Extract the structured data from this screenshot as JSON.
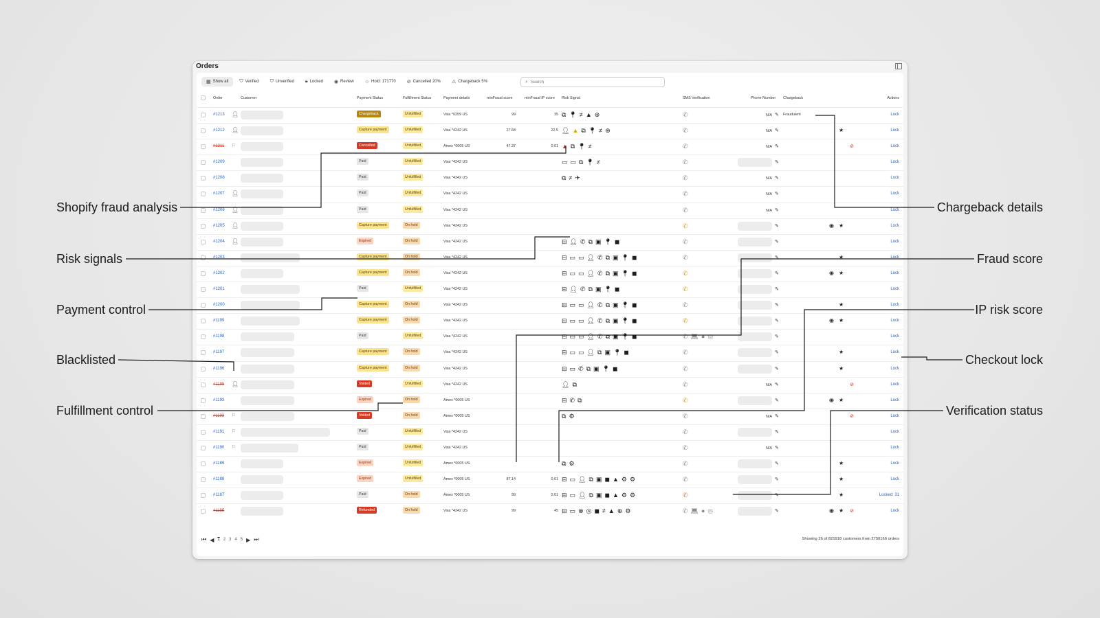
{
  "window": {
    "title": "Orders"
  },
  "tabs": [
    {
      "label": "Show all",
      "icon": "table-icon",
      "glyph": "▦",
      "active": true
    },
    {
      "label": "Verified",
      "icon": "shield-check-icon",
      "glyph": "⛉",
      "active": false
    },
    {
      "label": "Unverified",
      "icon": "shield-icon",
      "glyph": "⛉",
      "active": false
    },
    {
      "label": "Locked",
      "icon": "lock-icon",
      "glyph": "🔒︎",
      "active": false
    },
    {
      "label": "Review",
      "icon": "eye-icon",
      "glyph": "◉",
      "active": false
    },
    {
      "label": "Hold: 171770",
      "icon": "star-outline-icon",
      "glyph": "☆",
      "active": false
    },
    {
      "label": "Cancelled 20%",
      "icon": "cancel-icon",
      "glyph": "⊘",
      "active": false
    },
    {
      "label": "Chargeback 5%",
      "icon": "warning-icon",
      "glyph": "⚠",
      "active": false
    }
  ],
  "search": {
    "placeholder": "Search"
  },
  "columns": {
    "order": "Order",
    "customer": "Customer",
    "payment_status": "Payment Status",
    "fulfillment_status": "Fulfillment Status",
    "payment_details": "Payment details",
    "minfraud_score": "minFraud score",
    "minfraud_ip_score": "minFraud IP score",
    "risk_signal": "Risk Signal",
    "sms_verification": "SMS Verification",
    "phone_number": "Phone Number",
    "chargeback": "Chargeback",
    "actions": "Actions"
  },
  "statuses": {
    "Chargeback": {
      "bg": "#b8860b",
      "fg": "#ffffff"
    },
    "Capture payment": {
      "bg": "#fbe38e",
      "fg": "#5a4600"
    },
    "Cancelled": {
      "bg": "#d63a22",
      "fg": "#ffffff"
    },
    "Paid": {
      "bg": "#e6e6e6",
      "fg": "#444444"
    },
    "Expired": {
      "bg": "#fbd5c4",
      "fg": "#8a3b1a"
    },
    "Voided": {
      "bg": "#d63a22",
      "fg": "#ffffff"
    },
    "Refunded": {
      "bg": "#d63a22",
      "fg": "#ffffff"
    },
    "Unfulfilled": {
      "bg": "#fbe9a0",
      "fg": "#5a4600"
    },
    "On hold": {
      "bg": "#f7d9b0",
      "fg": "#6b3f10"
    }
  },
  "orders": [
    {
      "id": "#1213",
      "struck": false,
      "cust_icon": "user-icon",
      "cust_w": 62,
      "payment": "Chargeback",
      "fulfillment": "Unfulfilled",
      "details": "Visa *0259 US",
      "fraud": "99",
      "ip": "35",
      "risk": [
        "copy",
        "pin",
        "neq",
        "warn-dark",
        "globe"
      ],
      "sms": [
        "phone"
      ],
      "phone_na": "N/A",
      "phone_field": false,
      "chargeback": "Fraudulent",
      "eye": false,
      "star": false,
      "nolock": false,
      "action": "Lock"
    },
    {
      "id": "#1212",
      "struck": false,
      "cust_icon": "user-icon",
      "cust_w": 62,
      "payment": "Capture payment",
      "fulfillment": "Unfulfilled",
      "details": "Visa *4242 US",
      "fraud": "27.84",
      "ip": "22.5",
      "risk": [
        "user-x",
        "warn-yellow",
        "copy",
        "pin",
        "neq",
        "globe"
      ],
      "sms": [
        "phone"
      ],
      "phone_na": "N/A",
      "phone_field": false,
      "chargeback": "",
      "eye": false,
      "star": true,
      "nolock": false,
      "action": "Lock"
    },
    {
      "id": "#1211",
      "struck": true,
      "cust_icon": "flag-icon",
      "cust_w": 62,
      "payment": "Cancelled",
      "fulfillment": "Unfulfilled",
      "details": "Amex *0005 US",
      "fraud": "47.37",
      "ip": "0.01",
      "risk": [
        "warn-red",
        "copy",
        "pin",
        "neq"
      ],
      "sms": [
        "phone"
      ],
      "phone_na": "N/A",
      "phone_field": false,
      "chargeback": "",
      "eye": false,
      "star": false,
      "nolock": true,
      "action": "Lock"
    },
    {
      "id": "#1209",
      "struck": false,
      "cust_icon": "",
      "cust_w": 62,
      "payment": "Paid",
      "fulfillment": "Unfulfilled",
      "details": "Visa *4242 US",
      "fraud": "",
      "ip": "",
      "risk": [
        "card",
        "card",
        "copy",
        "pin",
        "neq"
      ],
      "sms": [
        "phone"
      ],
      "phone_na": "",
      "phone_field": true,
      "chargeback": "",
      "eye": false,
      "star": false,
      "nolock": false,
      "action": "Lock"
    },
    {
      "id": "#1208",
      "struck": false,
      "cust_icon": "",
      "cust_w": 62,
      "payment": "Paid",
      "fulfillment": "Unfulfilled",
      "details": "Visa *4242 US",
      "fraud": "",
      "ip": "",
      "risk": [
        "copy",
        "neq",
        "plane"
      ],
      "sms": [
        "phone"
      ],
      "phone_na": "N/A",
      "phone_field": false,
      "chargeback": "",
      "eye": false,
      "star": false,
      "nolock": false,
      "action": "Lock"
    },
    {
      "id": "#1207",
      "struck": false,
      "cust_icon": "user-icon",
      "cust_w": 62,
      "payment": "Paid",
      "fulfillment": "Unfulfilled",
      "details": "Visa *4242 US",
      "fraud": "",
      "ip": "",
      "risk": [],
      "sms": [
        "phone"
      ],
      "phone_na": "N/A",
      "phone_field": false,
      "chargeback": "",
      "eye": false,
      "star": false,
      "nolock": false,
      "action": "Lock"
    },
    {
      "id": "#1206",
      "struck": false,
      "cust_icon": "user-icon",
      "cust_w": 62,
      "payment": "Paid",
      "fulfillment": "Unfulfilled",
      "details": "Visa *4242 US",
      "fraud": "",
      "ip": "",
      "risk": [],
      "sms": [
        "phone"
      ],
      "phone_na": "N/A",
      "phone_field": false,
      "chargeback": "",
      "eye": false,
      "star": false,
      "nolock": false,
      "action": "Lock"
    },
    {
      "id": "#1205",
      "struck": false,
      "cust_icon": "user-icon",
      "cust_w": 62,
      "payment": "Capture payment",
      "fulfillment": "On hold",
      "details": "Visa *4242 US",
      "fraud": "",
      "ip": "",
      "risk": [],
      "sms": [
        "phone-ok"
      ],
      "phone_na": "",
      "phone_field": true,
      "chargeback": "",
      "eye": true,
      "star": true,
      "nolock": false,
      "action": "Lock"
    },
    {
      "id": "#1204",
      "struck": false,
      "cust_icon": "user-icon",
      "cust_w": 62,
      "payment": "Expired",
      "fulfillment": "On hold",
      "details": "Visa *4242 US",
      "fraud": "",
      "ip": "",
      "risk": [
        "inbox",
        "person",
        "phone-s",
        "copy",
        "cash",
        "pin",
        "wallet"
      ],
      "sms": [
        "phone"
      ],
      "phone_na": "",
      "phone_field": true,
      "chargeback": "",
      "eye": false,
      "star": false,
      "nolock": false,
      "action": "Lock"
    },
    {
      "id": "#1203",
      "struck": false,
      "cust_icon": "",
      "cust_w": 86,
      "payment": "Capture payment",
      "fulfillment": "On hold",
      "details": "Visa *4242 US",
      "fraud": "",
      "ip": "",
      "risk": [
        "inbox",
        "card",
        "card",
        "person",
        "phone-s",
        "copy",
        "cash",
        "pin",
        "wallet"
      ],
      "sms": [
        "phone"
      ],
      "phone_na": "",
      "phone_field": true,
      "chargeback": "",
      "eye": false,
      "star": true,
      "nolock": false,
      "action": "Lock"
    },
    {
      "id": "#1202",
      "struck": false,
      "cust_icon": "",
      "cust_w": 62,
      "payment": "Capture payment",
      "fulfillment": "On hold",
      "details": "Visa *4242 US",
      "fraud": "",
      "ip": "",
      "risk": [
        "inbox",
        "card",
        "card",
        "person",
        "phone-s",
        "copy",
        "cash",
        "pin",
        "wallet"
      ],
      "sms": [
        "phone-ok"
      ],
      "phone_na": "",
      "phone_field": true,
      "chargeback": "",
      "eye": true,
      "star": true,
      "nolock": false,
      "action": "Lock"
    },
    {
      "id": "#1201",
      "struck": false,
      "cust_icon": "",
      "cust_w": 86,
      "payment": "Paid",
      "fulfillment": "Unfulfilled",
      "details": "Visa *4242 US",
      "fraud": "",
      "ip": "",
      "risk": [
        "inbox",
        "person",
        "phone-s",
        "copy",
        "cash",
        "pin",
        "wallet"
      ],
      "sms": [
        "phone-ok"
      ],
      "phone_na": "",
      "phone_field": true,
      "chargeback": "",
      "eye": false,
      "star": false,
      "nolock": false,
      "action": "Lock"
    },
    {
      "id": "#1200",
      "struck": false,
      "cust_icon": "",
      "cust_w": 86,
      "payment": "Capture payment",
      "fulfillment": "On hold",
      "details": "Visa *4242 US",
      "fraud": "",
      "ip": "",
      "risk": [
        "inbox",
        "card",
        "card",
        "person",
        "phone-s",
        "copy",
        "cash",
        "pin",
        "wallet"
      ],
      "sms": [
        "phone"
      ],
      "phone_na": "",
      "phone_field": true,
      "chargeback": "",
      "eye": false,
      "star": true,
      "nolock": false,
      "action": "Lock"
    },
    {
      "id": "#1199",
      "struck": false,
      "cust_icon": "",
      "cust_w": 86,
      "payment": "Capture payment",
      "fulfillment": "On hold",
      "details": "Visa *4242 US",
      "fraud": "",
      "ip": "",
      "risk": [
        "inbox",
        "card",
        "card",
        "person",
        "phone-s",
        "copy",
        "cash",
        "pin",
        "wallet"
      ],
      "sms": [
        "phone-ok"
      ],
      "phone_na": "",
      "phone_field": true,
      "chargeback": "",
      "eye": true,
      "star": true,
      "nolock": false,
      "action": "Lock"
    },
    {
      "id": "#1198",
      "struck": false,
      "cust_icon": "",
      "cust_w": 78,
      "payment": "Paid",
      "fulfillment": "Unfulfilled",
      "details": "Visa *4242 US",
      "fraud": "",
      "ip": "",
      "risk": [
        "inbox",
        "card",
        "card",
        "person",
        "phone-s",
        "copy",
        "cash",
        "pin",
        "wallet"
      ],
      "sms": [
        "phone",
        "laptop",
        "apple",
        "chrome"
      ],
      "phone_na": "",
      "phone_field": true,
      "chargeback": "",
      "eye": false,
      "star": false,
      "nolock": false,
      "action": "Lock"
    },
    {
      "id": "#1197",
      "struck": false,
      "cust_icon": "",
      "cust_w": 78,
      "payment": "Capture payment",
      "fulfillment": "On hold",
      "details": "Visa *4242 US",
      "fraud": "",
      "ip": "",
      "risk": [
        "inbox",
        "card",
        "card",
        "person",
        "copy",
        "cash",
        "pin",
        "wallet"
      ],
      "sms": [
        "phone"
      ],
      "phone_na": "",
      "phone_field": true,
      "chargeback": "",
      "eye": false,
      "star": true,
      "nolock": false,
      "action": "Lock"
    },
    {
      "id": "#1196",
      "struck": false,
      "cust_icon": "",
      "cust_w": 78,
      "payment": "Capture payment",
      "fulfillment": "On hold",
      "details": "Visa *4242 US",
      "fraud": "",
      "ip": "",
      "risk": [
        "inbox",
        "card",
        "phone-s",
        "copy",
        "cash",
        "pin",
        "wallet"
      ],
      "sms": [
        "phone"
      ],
      "phone_na": "",
      "phone_field": true,
      "chargeback": "",
      "eye": false,
      "star": true,
      "nolock": false,
      "action": "Lock"
    },
    {
      "id": "#1195",
      "struck": true,
      "cust_icon": "user-icon",
      "cust_w": 78,
      "payment": "Voided",
      "fulfillment": "Unfulfilled",
      "details": "Visa *4242 US",
      "fraud": "",
      "ip": "",
      "risk": [
        "user-x",
        "copy"
      ],
      "sms": [
        "phone"
      ],
      "phone_na": "N/A",
      "phone_field": false,
      "chargeback": "",
      "eye": false,
      "star": false,
      "nolock": true,
      "action": "Lock"
    },
    {
      "id": "#1193",
      "struck": false,
      "cust_icon": "",
      "cust_w": 78,
      "payment": "Expired",
      "fulfillment": "On hold",
      "details": "Amex *0005 US",
      "fraud": "",
      "ip": "",
      "risk": [
        "inbox",
        "phone-s",
        "copy"
      ],
      "sms": [
        "phone-ok"
      ],
      "phone_na": "",
      "phone_field": true,
      "chargeback": "",
      "eye": true,
      "star": true,
      "nolock": false,
      "action": "Lock"
    },
    {
      "id": "#1192",
      "struck": true,
      "cust_icon": "flag-icon",
      "cust_w": 78,
      "payment": "Voided",
      "fulfillment": "On hold",
      "details": "Amex *0005 US",
      "fraud": "",
      "ip": "",
      "risk": [
        "copy",
        "gears"
      ],
      "sms": [
        "phone"
      ],
      "phone_na": "N/A",
      "phone_field": false,
      "chargeback": "",
      "eye": false,
      "star": false,
      "nolock": true,
      "action": "Lock"
    },
    {
      "id": "#1191",
      "struck": false,
      "cust_icon": "flag-icon",
      "cust_w": 130,
      "payment": "Paid",
      "fulfillment": "Unfulfilled",
      "details": "Visa *4242 US",
      "fraud": "",
      "ip": "",
      "risk": [],
      "sms": [
        "phone"
      ],
      "phone_na": "",
      "phone_field": true,
      "chargeback": "",
      "eye": false,
      "star": false,
      "nolock": false,
      "action": "Lock"
    },
    {
      "id": "#1190",
      "struck": false,
      "cust_icon": "flag-icon",
      "cust_w": 84,
      "payment": "Paid",
      "fulfillment": "Unfulfilled",
      "details": "Visa *4242 US",
      "fraud": "",
      "ip": "",
      "risk": [],
      "sms": [
        "phone"
      ],
      "phone_na": "N/A",
      "phone_field": false,
      "chargeback": "",
      "eye": false,
      "star": false,
      "nolock": false,
      "action": "Lock"
    },
    {
      "id": "#1189",
      "struck": false,
      "cust_icon": "",
      "cust_w": 62,
      "payment": "Expired",
      "fulfillment": "Unfulfilled",
      "details": "Amex *0005 US",
      "fraud": "",
      "ip": "",
      "risk": [
        "copy",
        "gears"
      ],
      "sms": [
        "phone"
      ],
      "phone_na": "",
      "phone_field": true,
      "chargeback": "",
      "eye": false,
      "star": true,
      "nolock": false,
      "action": "Lock"
    },
    {
      "id": "#1188",
      "struck": false,
      "cust_icon": "",
      "cust_w": 62,
      "payment": "Expired",
      "fulfillment": "Unfulfilled",
      "details": "Amex *0005 US",
      "fraud": "87.14",
      "ip": "0.01",
      "risk": [
        "inbox",
        "card",
        "person",
        "copy",
        "cash",
        "wallet",
        "warn-dark",
        "gears",
        "gears"
      ],
      "sms": [
        "phone"
      ],
      "phone_na": "",
      "phone_field": true,
      "chargeback": "",
      "eye": false,
      "star": true,
      "nolock": false,
      "action": "Lock"
    },
    {
      "id": "#1187",
      "struck": false,
      "cust_icon": "",
      "cust_w": 62,
      "payment": "Paid",
      "fulfillment": "On hold",
      "details": "Amex *0005 US",
      "fraud": "99",
      "ip": "0.01",
      "risk": [
        "inbox",
        "card",
        "person",
        "copy",
        "cash",
        "wallet",
        "warn-dark",
        "gears",
        "gears"
      ],
      "sms": [
        "phone-bad"
      ],
      "phone_na": "",
      "phone_field": true,
      "chargeback": "",
      "eye": false,
      "star": true,
      "nolock": false,
      "action": "Locked: 31"
    },
    {
      "id": "#1185",
      "struck": true,
      "cust_icon": "",
      "cust_w": 62,
      "payment": "Refunded",
      "fulfillment": "On hold",
      "details": "Visa *4242 US",
      "fraud": "99",
      "ip": "45",
      "risk": [
        "inbox",
        "card",
        "circle-x",
        "compass",
        "wallet",
        "neq",
        "warn-dark",
        "globe",
        "gears"
      ],
      "sms": [
        "phone",
        "laptop",
        "apple",
        "chrome"
      ],
      "phone_na": "",
      "phone_field": true,
      "chargeback": "",
      "eye": true,
      "star": true,
      "nolock": true,
      "action": "Lock"
    }
  ],
  "pagination": {
    "pages": [
      "1",
      "2",
      "3",
      "4",
      "5"
    ],
    "current": "1"
  },
  "footer": {
    "summary": "Showing 26 of 821918 customers from 2750166 orders"
  },
  "callouts": {
    "shopify": "Shopify fraud analysis",
    "risk": "Risk signals",
    "payment": "Payment control",
    "blacklisted": "Blacklisted",
    "fulfillment": "Fulfillment control",
    "chargeback": "Chargeback details",
    "fraud": "Fraud score",
    "ip": "IP risk score",
    "lock": "Checkout lock",
    "verification": "Verification status"
  },
  "colors": {
    "link": "#2463c9",
    "danger": "#d12c1f",
    "warning": "#e4a100",
    "sms_ok": "#e89a00",
    "sms_bad": "#e06a3a"
  }
}
